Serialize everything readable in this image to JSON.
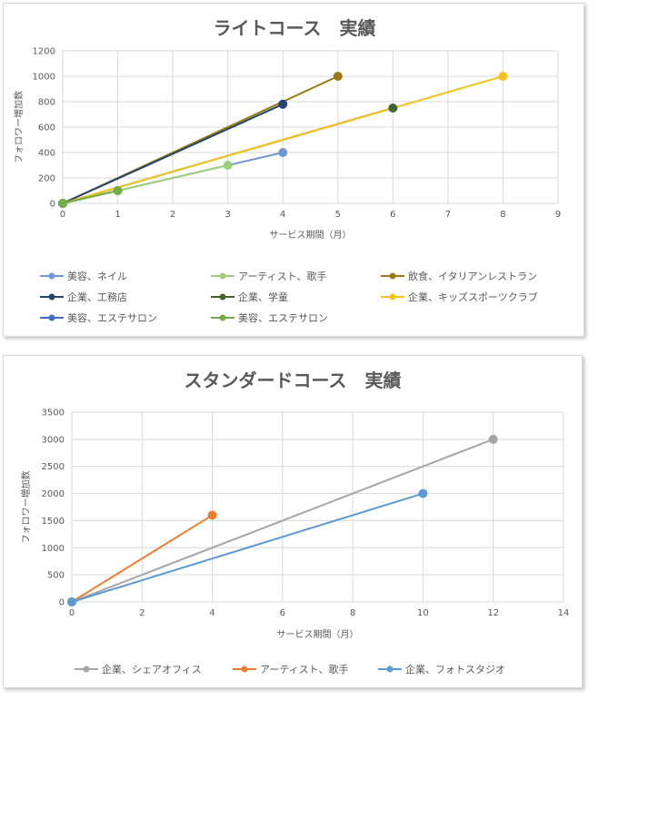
{
  "chart_data": [
    {
      "type": "line",
      "title": "ライトコース　実績",
      "xlabel": "サービス期間（月）",
      "ylabel": "フォロワー増加数",
      "xlim": [
        0,
        9
      ],
      "ylim": [
        0,
        1200
      ],
      "xticks": [
        "0",
        "1",
        "2",
        "3",
        "4",
        "5",
        "6",
        "7",
        "8",
        "9"
      ],
      "yticks": [
        "0",
        "200",
        "400",
        "600",
        "800",
        "1000",
        "1200"
      ],
      "grid": true,
      "legend": "bottom",
      "series": [
        {
          "name": "美容、ネイル",
          "color": "#6f96d6",
          "x": [
            0,
            4
          ],
          "y": [
            0,
            400
          ]
        },
        {
          "name": "アーティスト、歌手",
          "color": "#9ccf7c",
          "x": [
            0,
            1,
            3
          ],
          "y": [
            0,
            100,
            300
          ]
        },
        {
          "name": "飲食、イタリアンレストラン",
          "color": "#9a7a10",
          "x": [
            0,
            5
          ],
          "y": [
            0,
            1000
          ]
        },
        {
          "name": "企業、工務店",
          "color": "#26456e",
          "x": [
            0,
            4
          ],
          "y": [
            0,
            780
          ]
        },
        {
          "name": "企業、学童",
          "color": "#41662b",
          "x": [
            0,
            6
          ],
          "y": [
            0,
            750
          ]
        },
        {
          "name": "企業、キッズスポーツクラブ",
          "color": "#f5c21b",
          "x": [
            0,
            8
          ],
          "y": [
            0,
            1000
          ]
        },
        {
          "name": "美容、エステサロン",
          "color": "#3e6ec5",
          "x": [
            0
          ],
          "y": [
            0
          ]
        },
        {
          "name": "美容、エステサロン",
          "color": "#72ad47",
          "x": [
            0,
            1
          ],
          "y": [
            0,
            100
          ]
        }
      ]
    },
    {
      "type": "line",
      "title": "スタンダードコース　実績",
      "xlabel": "サービス期間（月）",
      "ylabel": "フォロワー増加数",
      "xlim": [
        0,
        14
      ],
      "ylim": [
        0,
        3500
      ],
      "xticks": [
        "0",
        "2",
        "4",
        "6",
        "8",
        "10",
        "12",
        "14"
      ],
      "yticks": [
        "0",
        "500",
        "1000",
        "1500",
        "2000",
        "2500",
        "3000",
        "3500"
      ],
      "grid": true,
      "legend": "bottom",
      "series": [
        {
          "name": "企業、シェアオフィス",
          "color": "#a5a5a5",
          "x": [
            0,
            12
          ],
          "y": [
            0,
            3000
          ]
        },
        {
          "name": "アーティスト、歌手",
          "color": "#ed7d31",
          "x": [
            0,
            4
          ],
          "y": [
            0,
            1600
          ]
        },
        {
          "name": "企業、フォトスタジオ",
          "color": "#5b9bd5",
          "x": [
            0,
            10
          ],
          "y": [
            0,
            2000
          ]
        }
      ]
    }
  ]
}
